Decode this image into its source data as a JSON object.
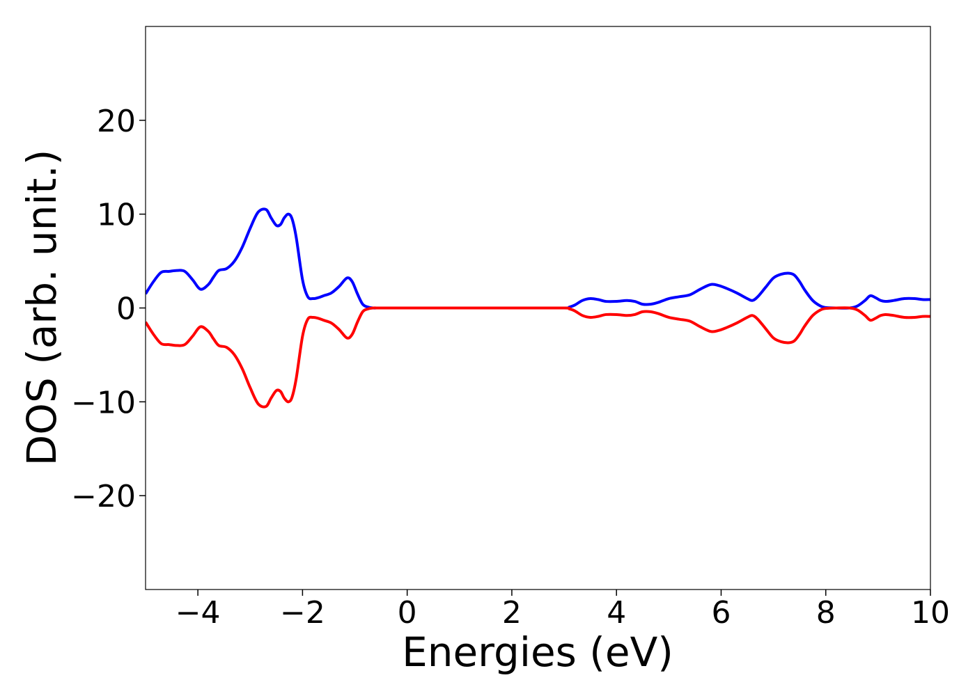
{
  "chart_data": {
    "type": "line",
    "xlabel": "Energies (eV)",
    "ylabel": "DOS (arb. unit.)",
    "xlim": [
      -5,
      10
    ],
    "ylim": [
      -30,
      30
    ],
    "xticks": [
      -4,
      -2,
      0,
      2,
      4,
      6,
      8,
      10
    ],
    "xtick_labels": [
      "−4",
      "−2",
      "0",
      "2",
      "4",
      "6",
      "8",
      "10"
    ],
    "yticks": [
      -20,
      -10,
      0,
      10,
      20
    ],
    "ytick_labels": [
      "−20",
      "−10",
      "0",
      "10",
      "20"
    ],
    "grid": false,
    "series": [
      {
        "color": "#0000ff",
        "x": [
          -5.0,
          -4.85,
          -4.7,
          -4.55,
          -4.4,
          -4.25,
          -4.1,
          -3.95,
          -3.8,
          -3.7,
          -3.6,
          -3.45,
          -3.3,
          -3.15,
          -3.0,
          -2.85,
          -2.7,
          -2.6,
          -2.5,
          -2.42,
          -2.35,
          -2.27,
          -2.2,
          -2.12,
          -2.0,
          -1.9,
          -1.8,
          -1.7,
          -1.6,
          -1.45,
          -1.3,
          -1.15,
          -1.05,
          -0.95,
          -0.85,
          -0.75,
          -0.65,
          -0.55,
          -0.4,
          0.0,
          1.0,
          2.0,
          3.0,
          3.1,
          3.2,
          3.35,
          3.5,
          3.65,
          3.8,
          4.0,
          4.2,
          4.35,
          4.5,
          4.65,
          4.8,
          5.0,
          5.2,
          5.4,
          5.6,
          5.8,
          5.95,
          6.1,
          6.3,
          6.5,
          6.6,
          6.7,
          6.85,
          7.0,
          7.15,
          7.3,
          7.4,
          7.5,
          7.6,
          7.75,
          7.9,
          8.0,
          8.2,
          8.45,
          8.6,
          8.75,
          8.85,
          8.95,
          9.05,
          9.15,
          9.3,
          9.5,
          9.7,
          9.85,
          10.0
        ],
        "y": [
          1.5,
          2.8,
          3.8,
          3.9,
          4.0,
          3.9,
          3.0,
          2.0,
          2.5,
          3.3,
          4.0,
          4.2,
          5.0,
          6.5,
          8.5,
          10.2,
          10.5,
          9.6,
          8.8,
          8.9,
          9.6,
          10.0,
          9.5,
          7.5,
          3.0,
          1.2,
          1.0,
          1.1,
          1.3,
          1.6,
          2.3,
          3.2,
          2.8,
          1.5,
          0.4,
          0.1,
          0.0,
          0.0,
          0.0,
          0.0,
          0.0,
          0.0,
          0.0,
          0.1,
          0.3,
          0.8,
          1.0,
          0.9,
          0.7,
          0.7,
          0.8,
          0.7,
          0.4,
          0.4,
          0.6,
          1.0,
          1.2,
          1.4,
          2.0,
          2.5,
          2.4,
          2.1,
          1.6,
          1.0,
          0.8,
          1.2,
          2.2,
          3.2,
          3.6,
          3.7,
          3.5,
          2.8,
          1.9,
          0.8,
          0.2,
          0.05,
          0.0,
          0.0,
          0.2,
          0.8,
          1.3,
          1.1,
          0.8,
          0.7,
          0.8,
          1.0,
          1.0,
          0.9,
          0.9
        ]
      },
      {
        "color": "#ff0000",
        "x": [
          -5.0,
          -4.85,
          -4.7,
          -4.55,
          -4.4,
          -4.25,
          -4.1,
          -3.95,
          -3.8,
          -3.7,
          -3.6,
          -3.45,
          -3.3,
          -3.15,
          -3.0,
          -2.85,
          -2.7,
          -2.6,
          -2.5,
          -2.42,
          -2.35,
          -2.27,
          -2.2,
          -2.12,
          -2.0,
          -1.9,
          -1.8,
          -1.7,
          -1.6,
          -1.45,
          -1.3,
          -1.15,
          -1.05,
          -0.95,
          -0.85,
          -0.75,
          -0.65,
          -0.55,
          -0.4,
          0.0,
          1.0,
          2.0,
          3.0,
          3.1,
          3.2,
          3.35,
          3.5,
          3.65,
          3.8,
          4.0,
          4.2,
          4.35,
          4.5,
          4.65,
          4.8,
          5.0,
          5.2,
          5.4,
          5.6,
          5.8,
          5.95,
          6.1,
          6.3,
          6.5,
          6.6,
          6.7,
          6.85,
          7.0,
          7.15,
          7.3,
          7.4,
          7.5,
          7.6,
          7.75,
          7.9,
          8.0,
          8.2,
          8.45,
          8.6,
          8.75,
          8.85,
          8.95,
          9.05,
          9.15,
          9.3,
          9.5,
          9.7,
          9.85,
          10.0
        ],
        "y": [
          -1.5,
          -2.8,
          -3.8,
          -3.9,
          -4.0,
          -3.9,
          -3.0,
          -2.0,
          -2.5,
          -3.3,
          -4.0,
          -4.2,
          -5.0,
          -6.5,
          -8.5,
          -10.2,
          -10.5,
          -9.6,
          -8.8,
          -8.9,
          -9.6,
          -10.0,
          -9.5,
          -7.5,
          -3.0,
          -1.2,
          -1.0,
          -1.1,
          -1.3,
          -1.6,
          -2.3,
          -3.2,
          -2.8,
          -1.5,
          -0.4,
          -0.1,
          0.0,
          0.0,
          0.0,
          0.0,
          0.0,
          0.0,
          0.0,
          -0.1,
          -0.3,
          -0.8,
          -1.0,
          -0.9,
          -0.7,
          -0.7,
          -0.8,
          -0.7,
          -0.4,
          -0.4,
          -0.6,
          -1.0,
          -1.2,
          -1.4,
          -2.0,
          -2.5,
          -2.4,
          -2.1,
          -1.6,
          -1.0,
          -0.8,
          -1.2,
          -2.2,
          -3.2,
          -3.6,
          -3.7,
          -3.5,
          -2.8,
          -1.9,
          -0.8,
          -0.2,
          -0.05,
          0.0,
          0.0,
          -0.2,
          -0.8,
          -1.3,
          -1.1,
          -0.8,
          -0.7,
          -0.8,
          -1.0,
          -1.0,
          -0.9,
          -0.9
        ]
      }
    ]
  }
}
